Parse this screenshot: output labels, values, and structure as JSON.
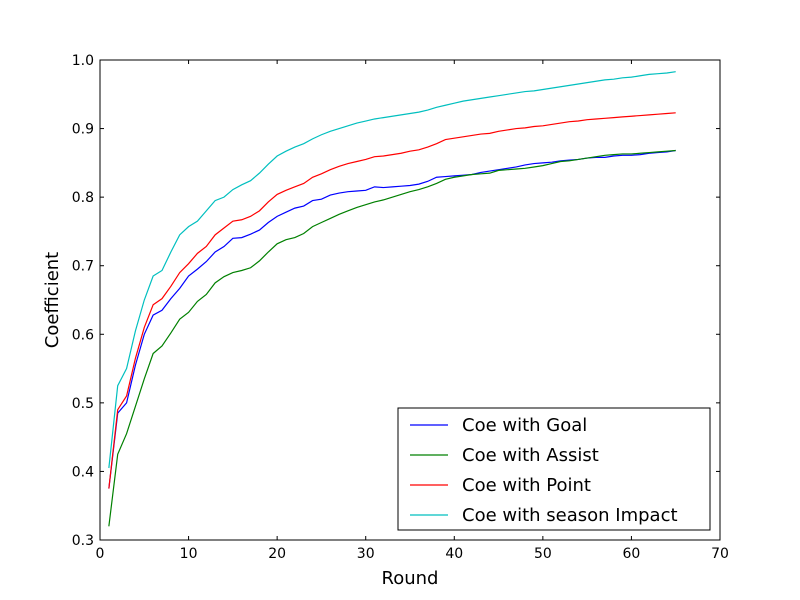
{
  "chart_data": {
    "type": "line",
    "title": "",
    "xlabel": "Round",
    "ylabel": "Coefficient",
    "xlim": [
      0,
      70
    ],
    "ylim": [
      0.3,
      1.0
    ],
    "x_ticks": [
      0,
      10,
      20,
      30,
      40,
      50,
      60,
      70
    ],
    "y_ticks": [
      0.3,
      0.4,
      0.5,
      0.6,
      0.7,
      0.8,
      0.9,
      1.0
    ],
    "x_tick_labels": [
      "0",
      "10",
      "20",
      "30",
      "40",
      "50",
      "60",
      "70"
    ],
    "y_tick_labels": [
      "0.3",
      "0.4",
      "0.5",
      "0.6",
      "0.7",
      "0.8",
      "0.9",
      "1.0"
    ],
    "grid": false,
    "legend_position": "lower-right",
    "x": [
      1,
      2,
      3,
      4,
      5,
      6,
      7,
      8,
      9,
      10,
      11,
      12,
      13,
      14,
      15,
      16,
      17,
      18,
      19,
      20,
      21,
      22,
      23,
      24,
      25,
      26,
      27,
      28,
      29,
      30,
      31,
      32,
      33,
      34,
      35,
      36,
      37,
      38,
      39,
      40,
      41,
      42,
      43,
      44,
      45,
      46,
      47,
      48,
      49,
      50,
      51,
      52,
      53,
      54,
      55,
      56,
      57,
      58,
      59,
      60,
      61,
      62,
      63,
      64,
      65
    ],
    "series": [
      {
        "name": "Coe with Goal",
        "color": "#0000ff",
        "values": [
          0.375,
          0.485,
          0.5,
          0.555,
          0.6,
          0.628,
          0.635,
          0.652,
          0.667,
          0.685,
          0.695,
          0.706,
          0.72,
          0.728,
          0.74,
          0.741,
          0.746,
          0.752,
          0.763,
          0.772,
          0.778,
          0.784,
          0.787,
          0.795,
          0.797,
          0.803,
          0.806,
          0.808,
          0.809,
          0.81,
          0.815,
          0.814,
          0.815,
          0.816,
          0.817,
          0.819,
          0.823,
          0.829,
          0.83,
          0.831,
          0.832,
          0.833,
          0.836,
          0.838,
          0.84,
          0.842,
          0.844,
          0.847,
          0.849,
          0.85,
          0.851,
          0.853,
          0.854,
          0.855,
          0.857,
          0.858,
          0.858,
          0.86,
          0.861,
          0.861,
          0.862,
          0.864,
          0.865,
          0.866,
          0.868
        ]
      },
      {
        "name": "Coe with Assist",
        "color": "#008000",
        "values": [
          0.32,
          0.425,
          0.455,
          0.495,
          0.535,
          0.572,
          0.583,
          0.602,
          0.622,
          0.632,
          0.648,
          0.658,
          0.675,
          0.684,
          0.69,
          0.693,
          0.697,
          0.707,
          0.72,
          0.732,
          0.738,
          0.741,
          0.747,
          0.757,
          0.763,
          0.769,
          0.775,
          0.78,
          0.785,
          0.789,
          0.793,
          0.796,
          0.8,
          0.804,
          0.808,
          0.811,
          0.815,
          0.82,
          0.826,
          0.829,
          0.831,
          0.833,
          0.834,
          0.835,
          0.839,
          0.84,
          0.841,
          0.842,
          0.844,
          0.846,
          0.849,
          0.852,
          0.853,
          0.855,
          0.857,
          0.859,
          0.861,
          0.862,
          0.863,
          0.863,
          0.864,
          0.865,
          0.866,
          0.867,
          0.868
        ]
      },
      {
        "name": "Coe with Point",
        "color": "#ff0000",
        "values": [
          0.375,
          0.49,
          0.51,
          0.565,
          0.61,
          0.643,
          0.652,
          0.67,
          0.69,
          0.703,
          0.718,
          0.728,
          0.745,
          0.755,
          0.765,
          0.767,
          0.772,
          0.78,
          0.793,
          0.804,
          0.81,
          0.815,
          0.82,
          0.829,
          0.834,
          0.84,
          0.845,
          0.849,
          0.852,
          0.855,
          0.859,
          0.86,
          0.862,
          0.864,
          0.867,
          0.869,
          0.873,
          0.878,
          0.884,
          0.886,
          0.888,
          0.89,
          0.892,
          0.893,
          0.896,
          0.898,
          0.9,
          0.901,
          0.903,
          0.904,
          0.906,
          0.908,
          0.91,
          0.911,
          0.913,
          0.914,
          0.915,
          0.916,
          0.917,
          0.918,
          0.919,
          0.92,
          0.921,
          0.922,
          0.923
        ]
      },
      {
        "name": "Coe with season Impact",
        "color": "#00bfbf",
        "values": [
          0.405,
          0.525,
          0.55,
          0.605,
          0.65,
          0.685,
          0.693,
          0.72,
          0.745,
          0.757,
          0.765,
          0.78,
          0.795,
          0.8,
          0.811,
          0.818,
          0.824,
          0.835,
          0.848,
          0.86,
          0.867,
          0.873,
          0.878,
          0.885,
          0.891,
          0.896,
          0.9,
          0.904,
          0.908,
          0.911,
          0.914,
          0.916,
          0.918,
          0.92,
          0.922,
          0.924,
          0.927,
          0.931,
          0.934,
          0.937,
          0.94,
          0.942,
          0.944,
          0.946,
          0.948,
          0.95,
          0.952,
          0.954,
          0.955,
          0.957,
          0.959,
          0.961,
          0.963,
          0.965,
          0.967,
          0.969,
          0.971,
          0.972,
          0.974,
          0.975,
          0.977,
          0.979,
          0.98,
          0.981,
          0.983
        ]
      }
    ]
  }
}
